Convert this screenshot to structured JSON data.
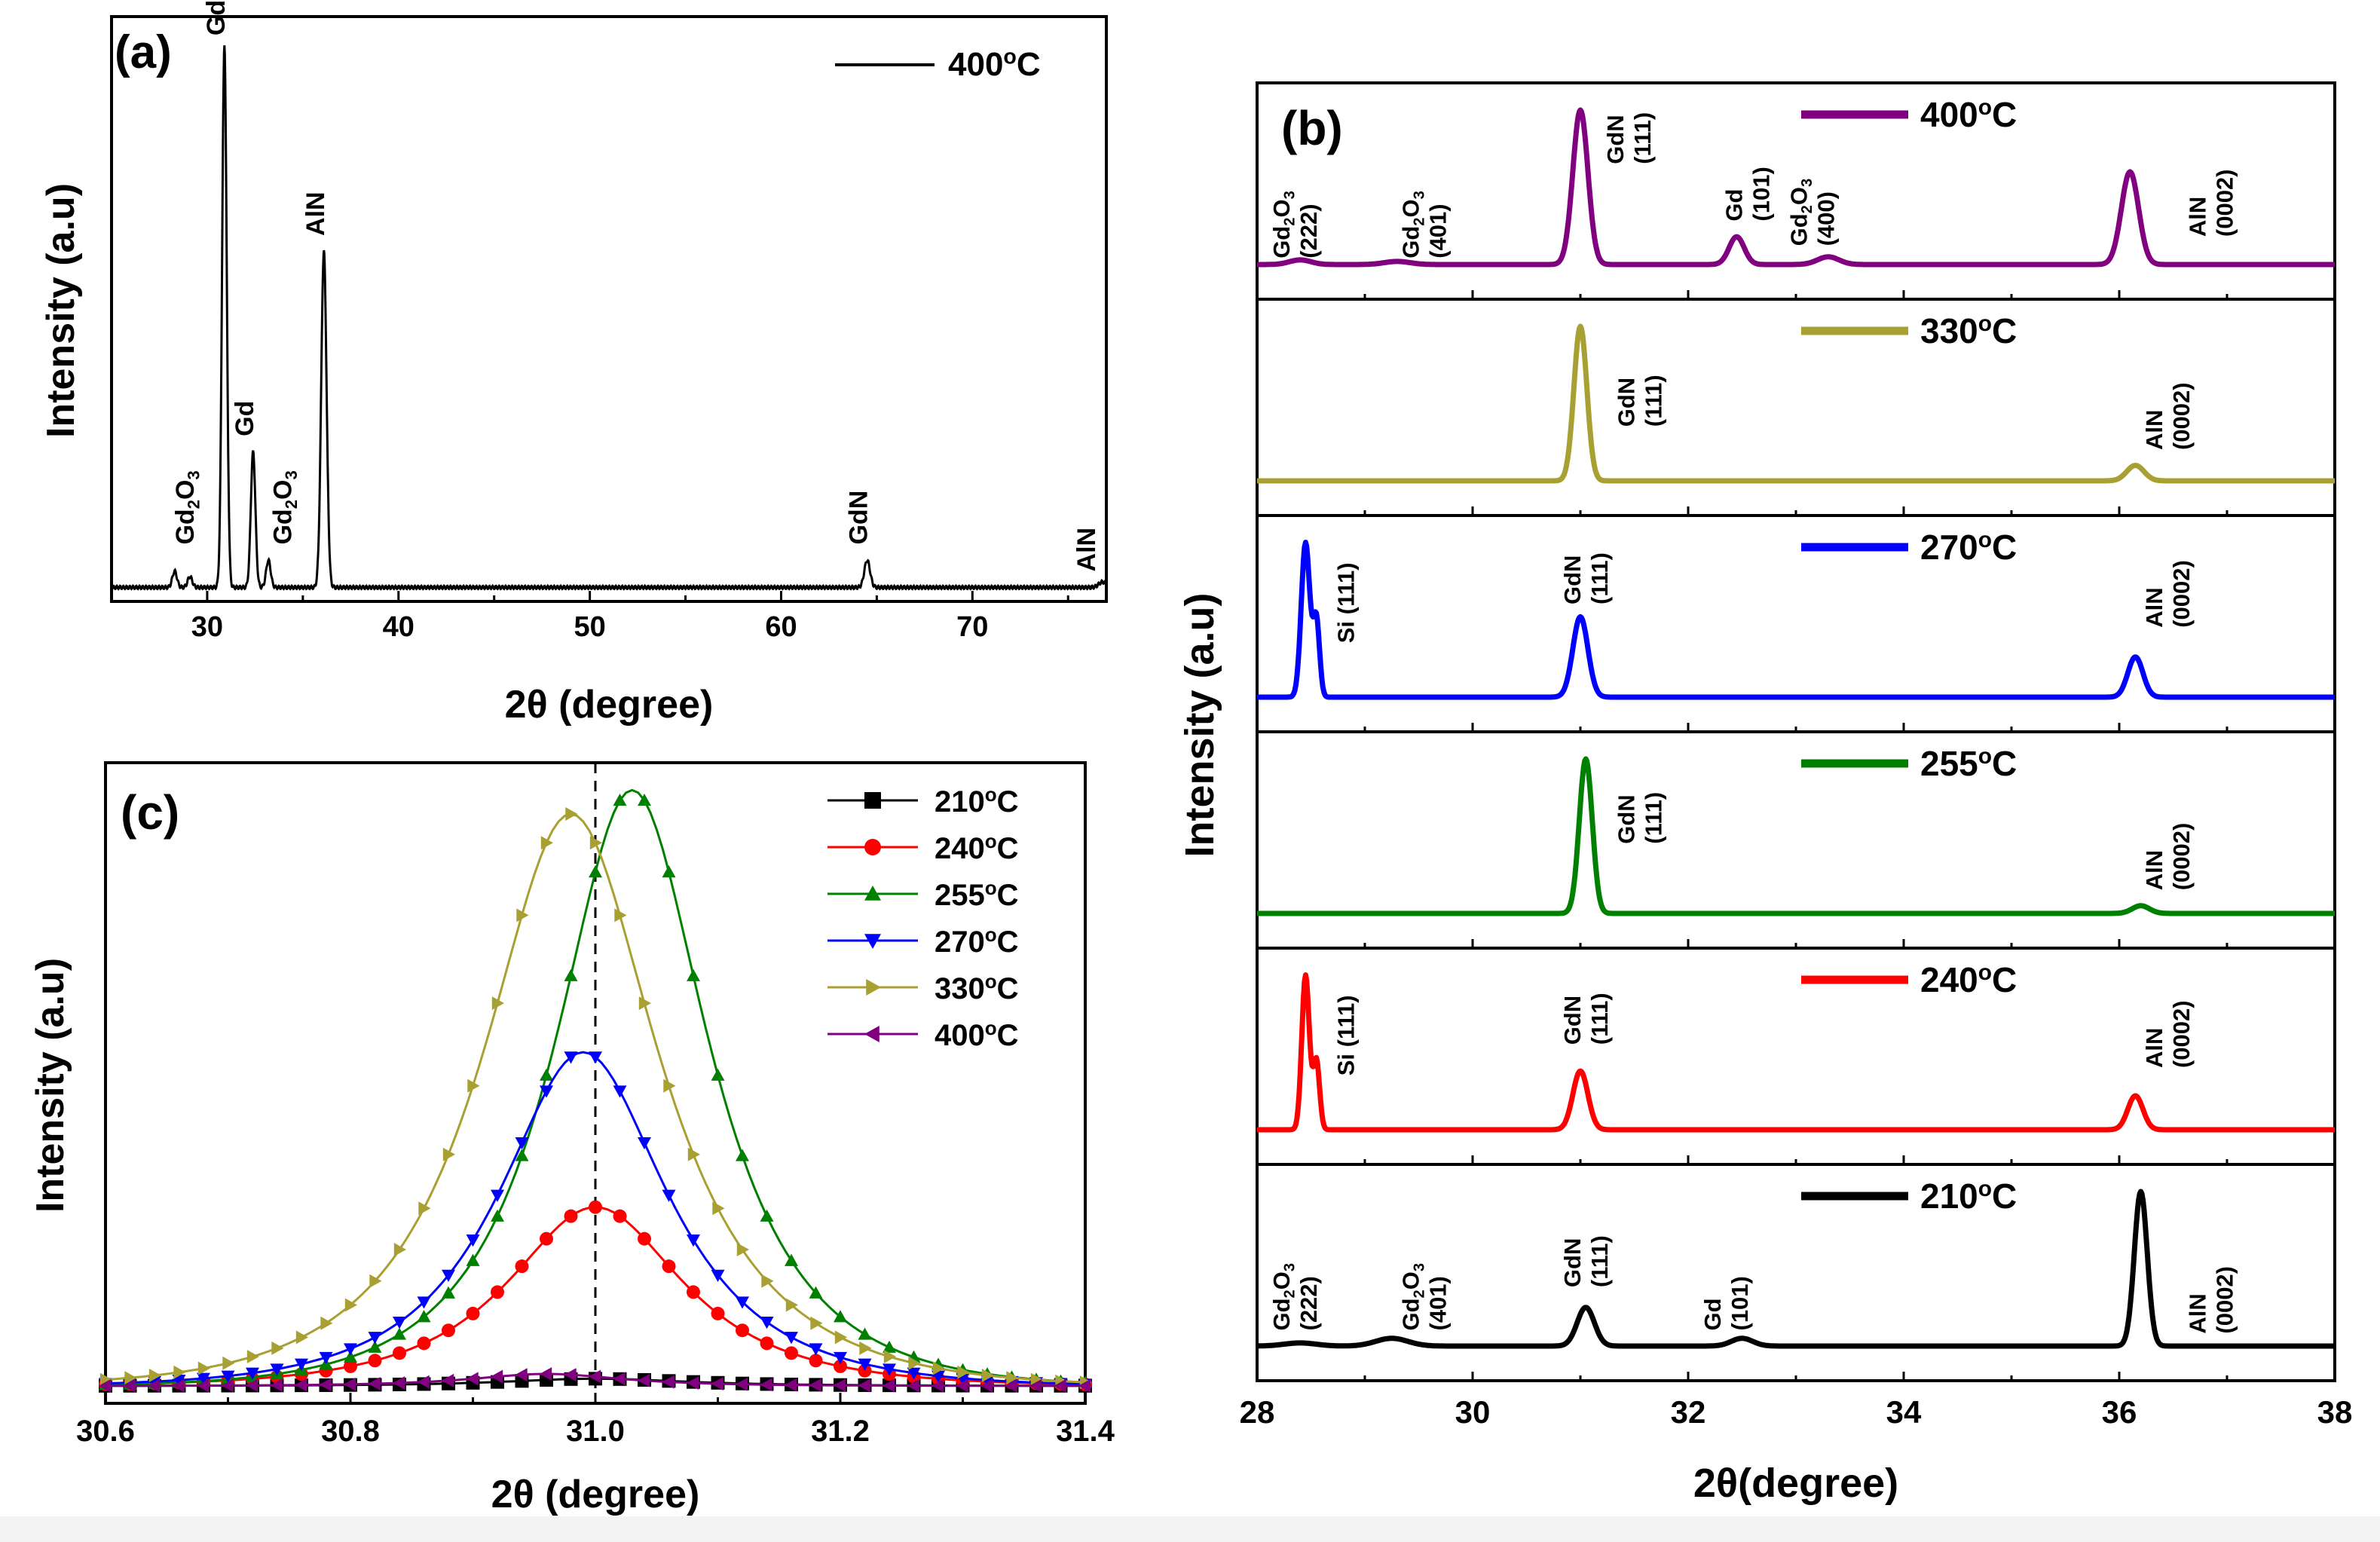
{
  "chart_data": [
    {
      "panel": "(a)",
      "type": "line",
      "title": "",
      "xlabel": "2θ (degree)",
      "ylabel": "Intensity (a.u)",
      "xlim": [
        25,
        77
      ],
      "ylim": [
        0,
        1.08
      ],
      "xticks": [
        30,
        40,
        50,
        60,
        70
      ],
      "legend": [
        {
          "label": "400°C",
          "color": "#000000"
        }
      ],
      "series": [
        {
          "name": "400°C",
          "color": "#000000",
          "peaks": [
            {
              "x": 28.3,
              "h": 0.03,
              "w": 0.12
            },
            {
              "x": 29.1,
              "h": 0.02,
              "w": 0.12
            },
            {
              "x": 30.9,
              "h": 1.0,
              "w": 0.12
            },
            {
              "x": 32.4,
              "h": 0.25,
              "w": 0.12
            },
            {
              "x": 33.2,
              "h": 0.05,
              "w": 0.12
            },
            {
              "x": 36.1,
              "h": 0.62,
              "w": 0.14
            },
            {
              "x": 64.5,
              "h": 0.05,
              "w": 0.15
            },
            {
              "x": 76.8,
              "h": 0.01,
              "w": 0.2
            }
          ]
        }
      ],
      "annotations": [
        {
          "text": "Gd2O3",
          "x": 29.3,
          "y": 0.08
        },
        {
          "text": "GdN",
          "x": 30.9,
          "y": 1.02
        },
        {
          "text": "Gd",
          "x": 32.4,
          "y": 0.28
        },
        {
          "text": "Gd2O3",
          "x": 34.4,
          "y": 0.08
        },
        {
          "text": "AlN",
          "x": 36.1,
          "y": 0.65
        },
        {
          "text": "GdN",
          "x": 64.5,
          "y": 0.08
        },
        {
          "text": "AlN",
          "x": 76.4,
          "y": 0.03
        }
      ]
    },
    {
      "panel": "(b)",
      "type": "line",
      "title": "",
      "xlabel": "2θ(degree)",
      "ylabel": "Intensity (a.u)",
      "xlim": [
        28,
        38
      ],
      "xticks": [
        28,
        30,
        32,
        34,
        36,
        38
      ],
      "series": [
        {
          "name": "400°C",
          "color": "#800080",
          "peaks": [
            {
              "x": 31.0,
              "h": 1.0,
              "w": 0.07
            },
            {
              "x": 32.45,
              "h": 0.18,
              "w": 0.07
            },
            {
              "x": 33.3,
              "h": 0.05,
              "w": 0.1
            },
            {
              "x": 36.1,
              "h": 0.6,
              "w": 0.08
            },
            {
              "x": 28.4,
              "h": 0.03,
              "w": 0.1
            },
            {
              "x": 29.3,
              "h": 0.02,
              "w": 0.12
            }
          ],
          "labels": [
            {
              "l1": "Gd2O3",
              "l2": "(222)",
              "x": 28.3,
              "y": 0.04
            },
            {
              "l1": "Gd2O3",
              "l2": "(401)",
              "x": 29.5,
              "y": 0.04
            },
            {
              "l1": "GdN",
              "l2": "(111)",
              "x": 31.4,
              "y": 0.65
            },
            {
              "l1": "Gd",
              "l2": "(101)",
              "x": 32.5,
              "y": 0.28
            },
            {
              "l1": "Gd2O3",
              "l2": "(400)",
              "x": 33.1,
              "y": 0.12
            },
            {
              "l1": "AlN",
              "l2": "(0002)",
              "x": 36.8,
              "y": 0.18
            }
          ]
        },
        {
          "name": "330°C",
          "color": "#a8a032",
          "peaks": [
            {
              "x": 31.0,
              "h": 1.0,
              "w": 0.06
            },
            {
              "x": 36.15,
              "h": 0.1,
              "w": 0.08
            }
          ],
          "labels": [
            {
              "l1": "GdN",
              "l2": "(111)",
              "x": 31.5,
              "y": 0.35
            },
            {
              "l1": "AlN",
              "l2": "(0002)",
              "x": 36.4,
              "y": 0.2
            }
          ]
        },
        {
          "name": "270°C",
          "color": "#0000ff",
          "peaks": [
            {
              "x": 28.45,
              "h": 1.0,
              "w": 0.04
            },
            {
              "x": 28.55,
              "h": 0.5,
              "w": 0.03
            },
            {
              "x": 31.0,
              "h": 0.52,
              "w": 0.07
            },
            {
              "x": 36.15,
              "h": 0.26,
              "w": 0.07
            }
          ],
          "labels": [
            {
              "l1": "Si (111)",
              "l2": "",
              "x": 28.9,
              "y": 0.35
            },
            {
              "l1": "GdN",
              "l2": "(111)",
              "x": 31.0,
              "y": 0.6
            },
            {
              "l1": "AlN",
              "l2": "(0002)",
              "x": 36.4,
              "y": 0.45
            }
          ]
        },
        {
          "name": "255°C",
          "color": "#008000",
          "peaks": [
            {
              "x": 31.05,
              "h": 1.0,
              "w": 0.06
            },
            {
              "x": 36.2,
              "h": 0.05,
              "w": 0.08
            }
          ],
          "labels": [
            {
              "l1": "GdN",
              "l2": "(111)",
              "x": 31.5,
              "y": 0.45
            },
            {
              "l1": "AlN",
              "l2": "(0002)",
              "x": 36.4,
              "y": 0.15
            }
          ]
        },
        {
          "name": "240°C",
          "color": "#ff0000",
          "peaks": [
            {
              "x": 28.45,
              "h": 1.0,
              "w": 0.035
            },
            {
              "x": 28.55,
              "h": 0.45,
              "w": 0.03
            },
            {
              "x": 31.0,
              "h": 0.38,
              "w": 0.07
            },
            {
              "x": 36.15,
              "h": 0.22,
              "w": 0.07
            }
          ],
          "labels": [
            {
              "l1": "Si (111)",
              "l2": "",
              "x": 28.9,
              "y": 0.35
            },
            {
              "l1": "GdN",
              "l2": "(111)",
              "x": 31.0,
              "y": 0.55
            },
            {
              "l1": "AlN",
              "l2": "(0002)",
              "x": 36.4,
              "y": 0.4
            }
          ]
        },
        {
          "name": "210°C",
          "color": "#000000",
          "peaks": [
            {
              "x": 31.05,
              "h": 0.25,
              "w": 0.08
            },
            {
              "x": 32.5,
              "h": 0.05,
              "w": 0.1
            },
            {
              "x": 29.25,
              "h": 0.05,
              "w": 0.15
            },
            {
              "x": 36.2,
              "h": 1.0,
              "w": 0.06
            },
            {
              "x": 28.4,
              "h": 0.02,
              "w": 0.15
            }
          ],
          "labels": [
            {
              "l1": "Gd2O3",
              "l2": "(222)",
              "x": 28.3,
              "y": 0.1
            },
            {
              "l1": "Gd2O3",
              "l2": "(401)",
              "x": 29.5,
              "y": 0.1
            },
            {
              "l1": "GdN",
              "l2": "(111)",
              "x": 31.0,
              "y": 0.38
            },
            {
              "l1": "Gd",
              "l2": "(101)",
              "x": 32.3,
              "y": 0.1
            },
            {
              "l1": "AlN",
              "l2": "(0002)",
              "x": 36.8,
              "y": 0.08
            }
          ]
        }
      ]
    },
    {
      "panel": "(c)",
      "type": "line",
      "title": "",
      "xlabel": "2θ (degree)",
      "ylabel": "Intensity (a.u)",
      "xlim": [
        30.6,
        31.4
      ],
      "ylim": [
        0,
        1.05
      ],
      "xticks": [
        30.6,
        30.8,
        31.0,
        31.2,
        31.4
      ],
      "reference_line_x": 31.0,
      "series": [
        {
          "name": "210°C",
          "color": "#000000",
          "marker": "square",
          "center": 31.0,
          "peak": 0.012,
          "width": 0.12
        },
        {
          "name": "240°C",
          "color": "#ff0000",
          "marker": "circle",
          "center": 31.0,
          "peak": 0.3,
          "width": 0.115
        },
        {
          "name": "255°C",
          "color": "#008000",
          "marker": "triangle-up",
          "center": 31.03,
          "peak": 1.0,
          "width": 0.1
        },
        {
          "name": "270°C",
          "color": "#0000ff",
          "marker": "triangle-down",
          "center": 30.99,
          "peak": 0.56,
          "width": 0.11
        },
        {
          "name": "330°C",
          "color": "#a8a032",
          "marker": "triangle-right",
          "center": 30.98,
          "peak": 0.96,
          "width": 0.115
        },
        {
          "name": "400°C",
          "color": "#800080",
          "marker": "triangle-left",
          "center": 30.96,
          "peak": 0.02,
          "width": 0.1
        }
      ]
    }
  ]
}
